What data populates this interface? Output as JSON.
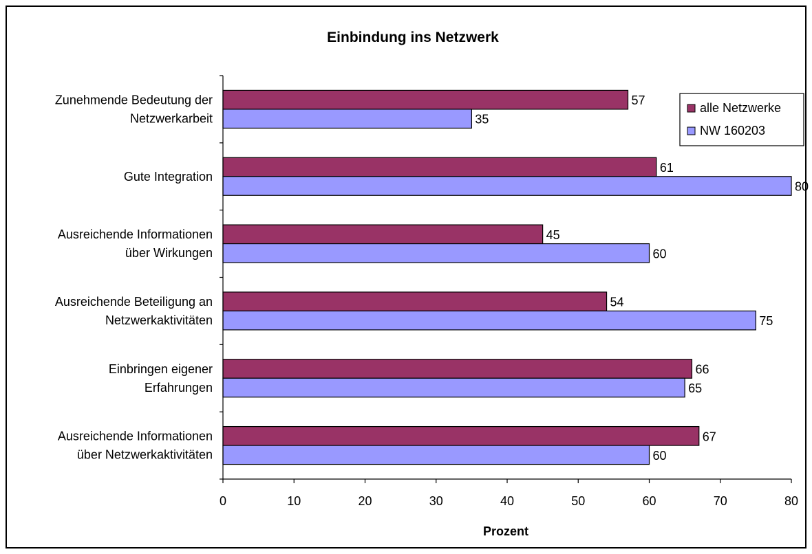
{
  "chart_data": {
    "type": "bar",
    "orientation": "horizontal",
    "title": "Einbindung ins Netzwerk",
    "xlabel": "Prozent",
    "ylabel": "",
    "xlim": [
      0,
      80
    ],
    "x_ticks": [
      0,
      10,
      20,
      30,
      40,
      50,
      60,
      70,
      80
    ],
    "grid": false,
    "legend_position": "top-right",
    "categories": [
      [
        "Zunehmende Bedeutung der",
        "Netzwerkarbeit"
      ],
      [
        "Gute Integration"
      ],
      [
        "Ausreichende Informationen",
        "über Wirkungen"
      ],
      [
        "Ausreichende Beteiligung an",
        "Netzwerkaktivitäten"
      ],
      [
        "Einbringen eigener",
        "Erfahrungen"
      ],
      [
        "Ausreichende Informationen",
        "über Netzwerkaktivitäten"
      ]
    ],
    "series": [
      {
        "name": "alle Netzwerke",
        "color": "#993366",
        "values": [
          57,
          61,
          45,
          54,
          66,
          67
        ]
      },
      {
        "name": "NW 160203",
        "color": "#9999FF",
        "values": [
          35,
          80,
          60,
          75,
          65,
          60
        ]
      }
    ]
  }
}
